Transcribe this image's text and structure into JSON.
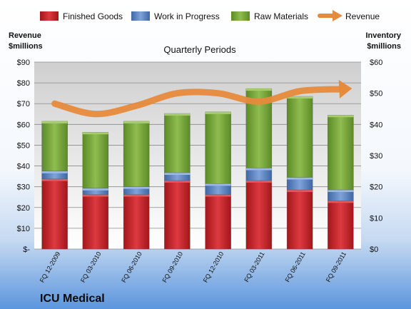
{
  "company": "ICU Medical",
  "chart_data": {
    "type": "bar",
    "stacked": true,
    "title": "Quarterly Periods",
    "left_axis_title": [
      "Revenue",
      "$millions"
    ],
    "right_axis_title": [
      "Inventory",
      "$millions"
    ],
    "categories": [
      "FQ 12-2009",
      "FQ 03-2010",
      "FQ 06-2010",
      "FQ 09-2010",
      "FQ 12-2010",
      "FQ 03-2011",
      "FQ 06-2011",
      "FQ 09-2011"
    ],
    "series": [
      {
        "name": "Finished Goods",
        "axis": "right",
        "color": "#c0272d",
        "values": [
          22.5,
          17.5,
          17.5,
          22,
          17.5,
          22,
          19,
          15.5
        ]
      },
      {
        "name": "Work in Progress",
        "axis": "right",
        "color": "#5b86c5",
        "values": [
          2.5,
          2,
          2.5,
          2.5,
          3.5,
          4,
          4,
          3.5
        ]
      },
      {
        "name": "Raw Materials",
        "axis": "right",
        "color": "#77a53a",
        "values": [
          16,
          18,
          21,
          19,
          23,
          25.5,
          26,
          24
        ]
      },
      {
        "name": "Revenue",
        "axis": "left",
        "type": "line",
        "color": "#e68a3c",
        "values": [
          70,
          65,
          69,
          75,
          75,
          71,
          76,
          77
        ]
      }
    ],
    "left_axis": {
      "min": 0,
      "max": 90,
      "step": 10,
      "tick_labels": [
        "$-",
        "$10",
        "$20",
        "$30",
        "$40",
        "$50",
        "$60",
        "$70",
        "$80",
        "$90"
      ]
    },
    "right_axis": {
      "min": 0,
      "max": 60,
      "step": 10,
      "tick_labels": [
        "$0",
        "$10",
        "$20",
        "$30",
        "$40",
        "$50",
        "$60"
      ]
    },
    "grid": true,
    "legend_position": "top"
  }
}
